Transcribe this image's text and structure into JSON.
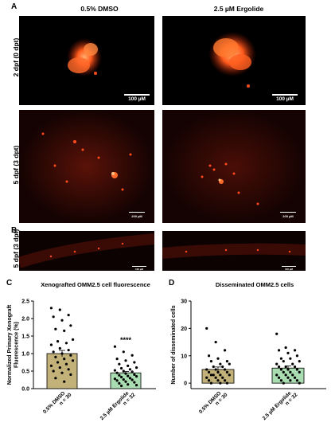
{
  "panels": {
    "a": "A",
    "b": "B",
    "c": "C",
    "d": "D"
  },
  "columns": [
    "0.5% DMSO",
    "2.5 µM Ergolide"
  ],
  "rows": {
    "row1": "2 dpf (0 dpt)",
    "row2": "5 dpf (3 dpt)",
    "row3": "5 dpf (3 dpt)"
  },
  "scalebars": {
    "large": "100 µM",
    "small": "200 µM",
    "tiny": "100 µM"
  },
  "colors": {
    "dmso_bar": "#c2b178",
    "ergolide_bar": "#a9dcb0",
    "fluorescence": "#ff4a1c"
  },
  "chart_data": [
    {
      "type": "bar",
      "title": "Xenografted OMM2.5 cell fluorescence",
      "ylabel": "Normalized Primary Xenograft Fluorescence (%)",
      "ylim": [
        0,
        2.5
      ],
      "yticks": [
        "0.0",
        "0.5",
        "1.0",
        "1.5",
        "2.0",
        "2.5"
      ],
      "categories": [
        "0.5% DMSO",
        "2.5 µM Ergolide"
      ],
      "n_labels": [
        "n = 30",
        "n = 32"
      ],
      "values": [
        1.0,
        0.45
      ],
      "errors": [
        0.09,
        0.04
      ],
      "significance": "****",
      "points": [
        [
          2.3,
          2.25,
          2.1,
          2.05,
          1.95,
          1.8,
          1.7,
          1.65,
          1.4,
          1.35,
          1.3,
          1.25,
          1.15,
          1.1,
          1.05,
          1.0,
          0.95,
          0.9,
          0.85,
          0.8,
          0.75,
          0.7,
          0.65,
          0.6,
          0.55,
          0.5,
          0.45,
          0.4,
          0.3,
          0.2
        ],
        [
          1.2,
          1.05,
          0.95,
          0.85,
          0.8,
          0.75,
          0.7,
          0.65,
          0.6,
          0.58,
          0.55,
          0.52,
          0.5,
          0.48,
          0.45,
          0.43,
          0.4,
          0.38,
          0.36,
          0.35,
          0.33,
          0.3,
          0.28,
          0.26,
          0.25,
          0.23,
          0.2,
          0.18,
          0.15,
          0.12,
          0.1,
          0.08
        ]
      ]
    },
    {
      "type": "bar",
      "title": "Disseminated OMM2.5 cells",
      "ylabel": "Number of disseminated cells",
      "ylim": [
        -2,
        30
      ],
      "yticks": [
        "0",
        "10",
        "20",
        "30"
      ],
      "categories": [
        "0.5% DMSO",
        "2.5 µM Ergolide"
      ],
      "n_labels": [
        "n = 30",
        "n = 32"
      ],
      "values": [
        5,
        5.5
      ],
      "errors": [
        0.9,
        0.8
      ],
      "points": [
        [
          20,
          15,
          12,
          10,
          9,
          8,
          8,
          7,
          7,
          6,
          6,
          5,
          5,
          5,
          4,
          4,
          4,
          3,
          3,
          3,
          3,
          2,
          2,
          2,
          1,
          1,
          1,
          0,
          0,
          0
        ],
        [
          18,
          13,
          12,
          12,
          11,
          10,
          9,
          9,
          8,
          8,
          7,
          7,
          6,
          6,
          6,
          5,
          5,
          5,
          4,
          4,
          4,
          3,
          3,
          3,
          2,
          2,
          2,
          1,
          1,
          1,
          0,
          0
        ]
      ]
    }
  ]
}
